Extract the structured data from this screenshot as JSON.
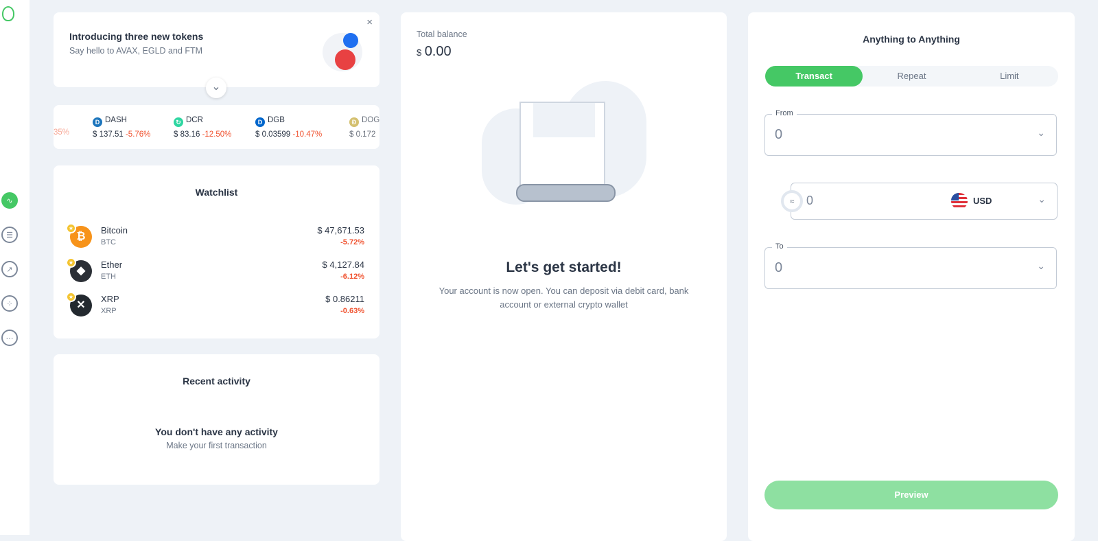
{
  "sidebar": {
    "items": [
      {
        "icon": "pulse-icon",
        "active": true
      },
      {
        "icon": "list-icon"
      },
      {
        "icon": "trend-icon"
      },
      {
        "icon": "apps-icon"
      },
      {
        "icon": "more-icon"
      }
    ],
    "accent": "#45c865"
  },
  "promo": {
    "title": "Introducing three new tokens",
    "subtitle": "Say hello to AVAX, EGLD and FTM"
  },
  "ticker": {
    "partial_change": "35%",
    "items": [
      {
        "symbol": "DASH",
        "price": "$ 137.51",
        "change": "-5.76%",
        "color": "#1c75bc"
      },
      {
        "symbol": "DCR",
        "price": "$ 83.16",
        "change": "-12.50%",
        "color": "#2ed6a1"
      },
      {
        "symbol": "DGB",
        "price": "$ 0.03599",
        "change": "-10.47%",
        "color": "#0066cc"
      },
      {
        "symbol": "DOGE",
        "price": "$ 0.172",
        "change": "",
        "color": "#c2a633"
      }
    ]
  },
  "watchlist": {
    "title": "Watchlist",
    "items": [
      {
        "name": "Bitcoin",
        "symbol": "BTC",
        "price": "$ 47,671.53",
        "change": "-5.72%",
        "color": "#f7931a",
        "glyph": "₿"
      },
      {
        "name": "Ether",
        "symbol": "ETH",
        "price": "$ 4,127.84",
        "change": "-6.12%",
        "color": "#2b2f36",
        "glyph": "◆"
      },
      {
        "name": "XRP",
        "symbol": "XRP",
        "price": "$ 0.86211",
        "change": "-0.63%",
        "color": "#23292f",
        "glyph": "✕"
      }
    ]
  },
  "activity": {
    "title": "Recent activity",
    "empty_title": "You don't have any activity",
    "empty_sub": "Make your first transaction"
  },
  "balance": {
    "label": "Total balance",
    "currency": "$",
    "amount": "0.00",
    "heading": "Let's get started!",
    "text": "Your account is now open. You can deposit via debit card, bank account or external crypto wallet"
  },
  "exchange": {
    "title": "Anything to Anything",
    "tabs": [
      "Transact",
      "Repeat",
      "Limit"
    ],
    "active_tab": "Transact",
    "from_label": "From",
    "from_value": "0",
    "amount_value": "0",
    "currency": "USD",
    "to_label": "To",
    "to_value": "0",
    "preview": "Preview"
  }
}
